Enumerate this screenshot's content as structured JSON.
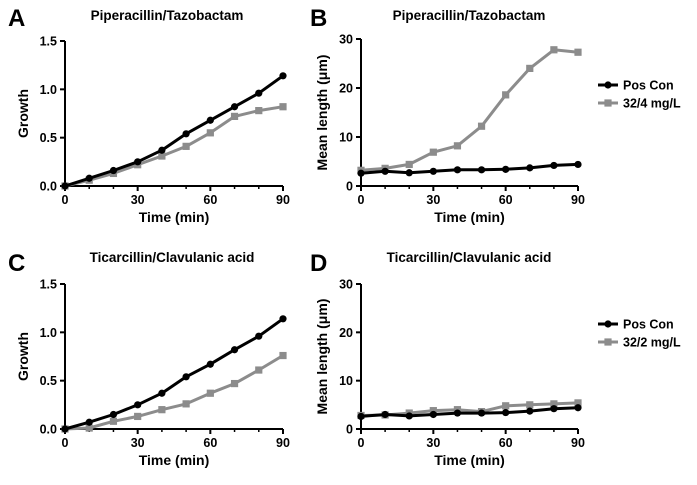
{
  "colors": {
    "pos_con": "#000000",
    "treated": "#8c8c8c"
  },
  "chart_data": [
    {
      "panel": "A",
      "type": "line",
      "title": "Piperacillin/Tazobactam",
      "xlabel": "Time (min)",
      "ylabel": "Growth",
      "xlim": [
        0,
        90
      ],
      "ylim": [
        0,
        1.5
      ],
      "xticks": [
        0,
        30,
        60,
        90
      ],
      "yticks": [
        0.0,
        0.5,
        1.0,
        1.5
      ],
      "ytick_labels": [
        "0.0",
        "0.5",
        "1.0",
        "1.5"
      ],
      "x": [
        0,
        10,
        20,
        30,
        40,
        50,
        60,
        70,
        80,
        90
      ],
      "series": [
        {
          "color": "#000000",
          "marker": "circle",
          "values": [
            0,
            0.08,
            0.16,
            0.25,
            0.37,
            0.54,
            0.68,
            0.82,
            0.96,
            1.14
          ]
        },
        {
          "color": "#8c8c8c",
          "marker": "square",
          "values": [
            0,
            0.06,
            0.13,
            0.22,
            0.31,
            0.41,
            0.55,
            0.72,
            0.78,
            0.82
          ]
        }
      ]
    },
    {
      "panel": "B",
      "type": "line",
      "title": "Piperacillin/Tazobactam",
      "xlabel": "Time (min)",
      "ylabel": "Mean length (μm)",
      "xlim": [
        0,
        90
      ],
      "ylim": [
        0,
        30
      ],
      "xticks": [
        0,
        30,
        60,
        90
      ],
      "yticks": [
        0,
        10,
        20,
        30
      ],
      "ytick_labels": [
        "0",
        "10",
        "20",
        "30"
      ],
      "x": [
        0,
        10,
        20,
        30,
        40,
        50,
        60,
        70,
        80,
        90
      ],
      "legend": "right",
      "series": [
        {
          "name": "Pos Con",
          "color": "#000000",
          "marker": "circle",
          "values": [
            2.6,
            3.0,
            2.7,
            3.0,
            3.3,
            3.3,
            3.4,
            3.7,
            4.2,
            4.4
          ]
        },
        {
          "name": "32/4 mg/L",
          "color": "#8c8c8c",
          "marker": "square",
          "values": [
            3.2,
            3.6,
            4.4,
            6.9,
            8.2,
            12.2,
            18.6,
            24.0,
            27.8,
            27.3
          ]
        }
      ]
    },
    {
      "panel": "C",
      "type": "line",
      "title": "Ticarcillin/Clavulanic acid",
      "xlabel": "Time (min)",
      "ylabel": "Growth",
      "xlim": [
        0,
        90
      ],
      "ylim": [
        0,
        1.5
      ],
      "xticks": [
        0,
        30,
        60,
        90
      ],
      "yticks": [
        0.0,
        0.5,
        1.0,
        1.5
      ],
      "ytick_labels": [
        "0.0",
        "0.5",
        "1.0",
        "1.5"
      ],
      "x": [
        0,
        10,
        20,
        30,
        40,
        50,
        60,
        70,
        80,
        90
      ],
      "series": [
        {
          "color": "#000000",
          "marker": "circle",
          "values": [
            0,
            0.07,
            0.15,
            0.25,
            0.37,
            0.54,
            0.67,
            0.82,
            0.96,
            1.14
          ]
        },
        {
          "color": "#8c8c8c",
          "marker": "square",
          "values": [
            0,
            0.01,
            0.08,
            0.13,
            0.2,
            0.26,
            0.37,
            0.47,
            0.61,
            0.76
          ]
        }
      ]
    },
    {
      "panel": "D",
      "type": "line",
      "title": "Ticarcillin/Clavulanic acid",
      "xlabel": "Time (min)",
      "ylabel": "Mean length (μm)",
      "xlim": [
        0,
        90
      ],
      "ylim": [
        0,
        30
      ],
      "xticks": [
        0,
        30,
        60,
        90
      ],
      "yticks": [
        0,
        10,
        20,
        30
      ],
      "ytick_labels": [
        "0",
        "10",
        "20",
        "30"
      ],
      "x": [
        0,
        10,
        20,
        30,
        40,
        50,
        60,
        70,
        80,
        90
      ],
      "legend": "right",
      "series": [
        {
          "name": "Pos Con",
          "color": "#000000",
          "marker": "circle",
          "values": [
            2.6,
            3.0,
            2.7,
            3.0,
            3.3,
            3.3,
            3.4,
            3.7,
            4.2,
            4.4
          ]
        },
        {
          "name": "32/2 mg/L",
          "color": "#8c8c8c",
          "marker": "square",
          "values": [
            2.8,
            2.9,
            3.3,
            3.8,
            4.0,
            3.6,
            4.8,
            5.0,
            5.2,
            5.4
          ]
        }
      ]
    }
  ]
}
